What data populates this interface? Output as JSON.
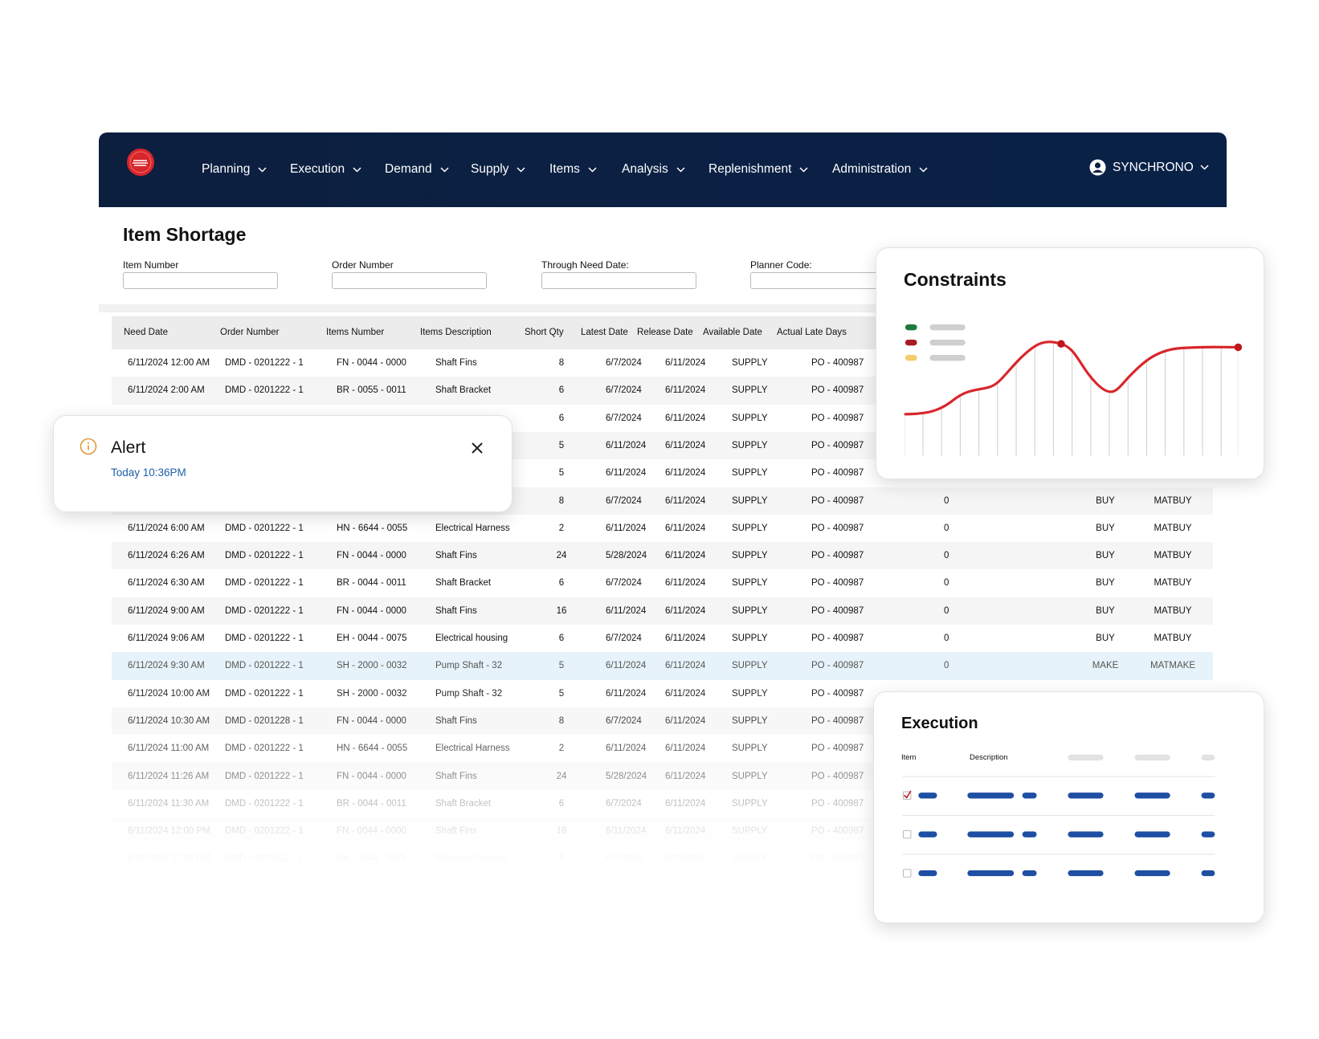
{
  "nav": {
    "items": [
      "Planning",
      "Execution",
      "Demand",
      "Supply",
      "Items",
      "Analysis",
      "Replenishment",
      "Administration"
    ],
    "user": "SYNCHRONO"
  },
  "page": {
    "title": "Item Shortage"
  },
  "filters": [
    "Item Number",
    "Order Number",
    "Through Need Date:",
    "Planner Code:"
  ],
  "table": {
    "headers": [
      "Need Date",
      "Order Number",
      "Items Number",
      "Items Description",
      "Short Qty",
      "Latest Date",
      "Release Date",
      "Available Date",
      "Actual Late Days"
    ],
    "rows": [
      [
        "6/11/2024 12:00 AM",
        "DMD - 0201222 - 1",
        "FN - 0044 - 0000",
        "Shaft Fins",
        8,
        "6/7/2024",
        "6/11/2024",
        "SUPPLY",
        "PO - 400987",
        null,
        null,
        null
      ],
      [
        "6/11/2024 2:00 AM",
        "DMD - 0201222 - 1",
        "BR - 0055 - 0011",
        "Shaft Bracket",
        6,
        "6/7/2024",
        "6/11/2024",
        "SUPPLY",
        "PO - 400987",
        null,
        null,
        null
      ],
      [
        null,
        null,
        null,
        null,
        6,
        "6/7/2024",
        "6/11/2024",
        "SUPPLY",
        "PO - 400987",
        null,
        null,
        null
      ],
      [
        null,
        null,
        null,
        null,
        5,
        "6/11/2024",
        "6/11/2024",
        "SUPPLY",
        "PO - 400987",
        null,
        null,
        null
      ],
      [
        null,
        null,
        null,
        null,
        5,
        "6/11/2024",
        "6/11/2024",
        "SUPPLY",
        "PO - 400987",
        null,
        null,
        null
      ],
      [
        null,
        null,
        null,
        null,
        8,
        "6/7/2024",
        "6/11/2024",
        "SUPPLY",
        "PO - 400987",
        0,
        "BUY",
        "MATBUY"
      ],
      [
        "6/11/2024 6:00 AM",
        "DMD - 0201222 - 1",
        "HN - 6644 - 0055",
        "Electrical Harness",
        2,
        "6/11/2024",
        "6/11/2024",
        "SUPPLY",
        "PO - 400987",
        0,
        "BUY",
        "MATBUY"
      ],
      [
        "6/11/2024 6:26 AM",
        "DMD - 0201222 - 1",
        "FN - 0044 - 0000",
        "Shaft Fins",
        24,
        "5/28/2024",
        "6/11/2024",
        "SUPPLY",
        "PO - 400987",
        0,
        "BUY",
        "MATBUY"
      ],
      [
        "6/11/2024 6:30 AM",
        "DMD - 0201222 - 1",
        "BR - 0044 - 0011",
        "Shaft Bracket",
        6,
        "6/7/2024",
        "6/11/2024",
        "SUPPLY",
        "PO - 400987",
        0,
        "BUY",
        "MATBUY"
      ],
      [
        "6/11/2024 9:00 AM",
        "DMD - 0201222 - 1",
        "FN - 0044 - 0000",
        "Shaft Fins",
        16,
        "6/11/2024",
        "6/11/2024",
        "SUPPLY",
        "PO - 400987",
        0,
        "BUY",
        "MATBUY"
      ],
      [
        "6/11/2024 9:06 AM",
        "DMD - 0201222 - 1",
        "EH - 0044 - 0075",
        "Electrical housing",
        6,
        "6/7/2024",
        "6/11/2024",
        "SUPPLY",
        "PO - 400987",
        0,
        "BUY",
        "MATBUY"
      ],
      [
        "6/11/2024 9:30 AM",
        "DMD - 0201222 - 1",
        "SH - 2000 - 0032",
        "Pump Shaft - 32",
        5,
        "6/11/2024",
        "6/11/2024",
        "SUPPLY",
        "PO - 400987",
        0,
        "MAKE",
        "MATMAKE"
      ],
      [
        "6/11/2024 10:00 AM",
        "DMD - 0201222 - 1",
        "SH - 2000 - 0032",
        "Pump Shaft - 32",
        5,
        "6/11/2024",
        "6/11/2024",
        "SUPPLY",
        "PO - 400987",
        null,
        null,
        null
      ],
      [
        "6/11/2024 10:30 AM",
        "DMD - 0201228 - 1",
        "FN - 0044 - 0000",
        "Shaft Fins",
        8,
        "6/7/2024",
        "6/11/2024",
        "SUPPLY",
        "PO - 400987",
        null,
        null,
        null
      ],
      [
        "6/11/2024 11:00 AM",
        "DMD - 0201222 - 1",
        "HN - 6644 - 0055",
        "Electrical Harness",
        2,
        "6/11/2024",
        "6/11/2024",
        "SUPPLY",
        "PO - 400987",
        null,
        null,
        null
      ],
      [
        "6/11/2024 11:26 AM",
        "DMD - 0201222 - 1",
        "FN - 0044 - 0000",
        "Shaft Fins",
        24,
        "5/28/2024",
        "6/11/2024",
        "SUPPLY",
        "PO - 400987",
        null,
        null,
        null
      ],
      [
        "6/11/2024 11:30 AM",
        "DMD - 0201222 - 1",
        "BR - 0044 - 0011",
        "Shaft Bracket",
        6,
        "6/7/2024",
        "6/11/2024",
        "SUPPLY",
        "PO - 400987",
        null,
        null,
        null
      ],
      [
        "6/11/2024 12:00 PM",
        "DMD - 0201222 - 1",
        "FN - 0044 - 0000",
        "Shaft Fins",
        16,
        "6/11/2024",
        "6/11/2024",
        "SUPPLY",
        "PO - 400987",
        null,
        null,
        null
      ],
      [
        "6/11/2024 12:06 PM",
        "DMD - 0201222 - 1",
        "EH - 0044 - 0075",
        "Electrical housing",
        6,
        "6/7/2024",
        "6/11/2024",
        "SUPPLY",
        "PO - 400983",
        null,
        null,
        null
      ]
    ]
  },
  "alert": {
    "title": "Alert",
    "time": "Today 10:36PM"
  },
  "constraints": {
    "title": "Constraints"
  },
  "execution": {
    "title": "Execution",
    "columns": [
      "Item",
      "Description"
    ]
  }
}
